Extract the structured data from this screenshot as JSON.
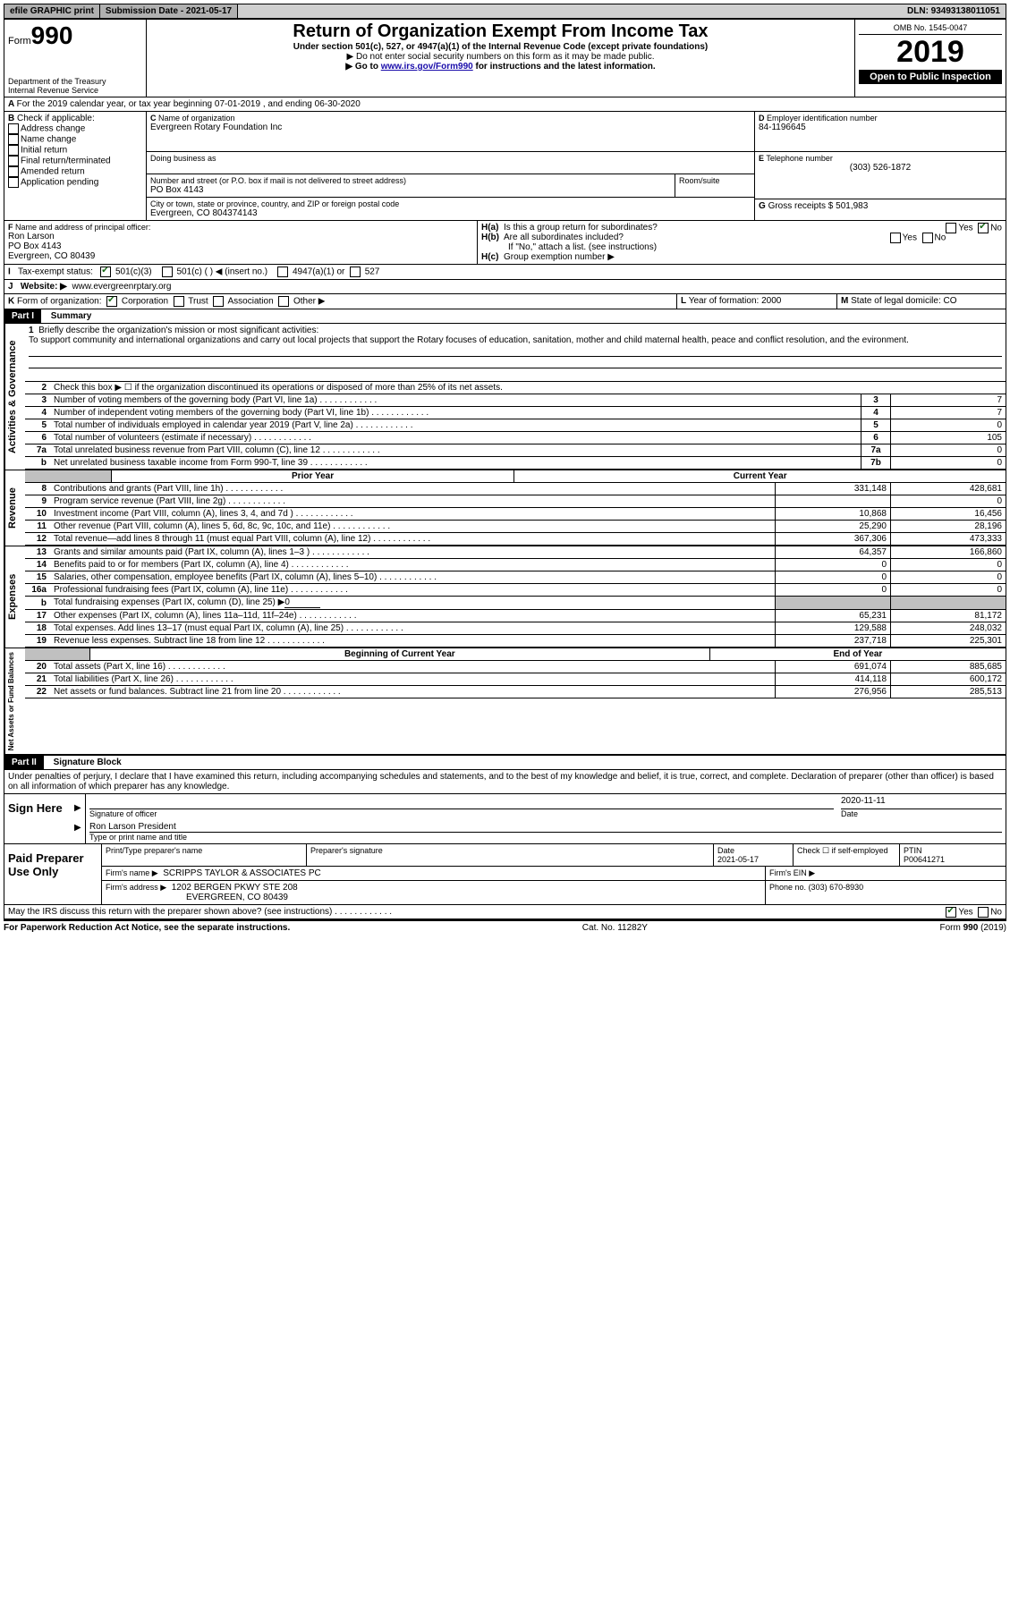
{
  "topbar": {
    "efile": "efile GRAPHIC print",
    "submission_label": "Submission Date - 2021-05-17",
    "dln_label": "DLN: 93493138011051"
  },
  "header": {
    "form_label": "Form",
    "form_number": "990",
    "dept1": "Department of the Treasury",
    "dept2": "Internal Revenue Service",
    "title": "Return of Organization Exempt From Income Tax",
    "subtitle": "Under section 501(c), 527, or 4947(a)(1) of the Internal Revenue Code (except private foundations)",
    "note1": "▶ Do not enter social security numbers on this form as it may be made public.",
    "note2_pre": "▶ Go to ",
    "note2_link": "www.irs.gov/Form990",
    "note2_post": " for instructions and the latest information.",
    "omb": "OMB No. 1545-0047",
    "year": "2019",
    "inspection": "Open to Public Inspection"
  },
  "periodA": "For the 2019 calendar year, or tax year beginning 07-01-2019    , and ending 06-30-2020",
  "boxB": {
    "label": "Check if applicable:",
    "opts": [
      "Address change",
      "Name change",
      "Initial return",
      "Final return/terminated",
      "Amended return",
      "Application pending"
    ]
  },
  "boxC": {
    "name_label": "Name of organization",
    "name": "Evergreen Rotary Foundation Inc",
    "dba_label": "Doing business as",
    "street_label": "Number and street (or P.O. box if mail is not delivered to street address)",
    "room_label": "Room/suite",
    "street": "PO Box 4143",
    "city_label": "City or town, state or province, country, and ZIP or foreign postal code",
    "city": "Evergreen, CO  804374143"
  },
  "boxD": {
    "label": "Employer identification number",
    "value": "84-1196645"
  },
  "boxE": {
    "label": "Telephone number",
    "value": "(303) 526-1872"
  },
  "boxG": {
    "label": "Gross receipts $",
    "value": "501,983"
  },
  "boxF": {
    "label": "Name and address of principal officer:",
    "name": "Ron Larson",
    "street": "PO Box 4143",
    "city": "Evergreen, CO  80439"
  },
  "boxH": {
    "a": "Is this a group return for subordinates?",
    "b": "Are all subordinates included?",
    "b_note": "If \"No,\" attach a list. (see instructions)",
    "c": "Group exemption number ▶",
    "yes": "Yes",
    "no": "No"
  },
  "boxI": {
    "label": "Tax-exempt status:",
    "o1": "501(c)(3)",
    "o2": "501(c) (   ) ◀ (insert no.)",
    "o3": "4947(a)(1) or",
    "o4": "527"
  },
  "boxJ": {
    "label": "Website: ▶",
    "value": "www.evergreenrptary.org"
  },
  "boxK": {
    "label": "Form of organization:",
    "o1": "Corporation",
    "o2": "Trust",
    "o3": "Association",
    "o4": "Other ▶"
  },
  "boxL": {
    "label": "Year of formation:",
    "value": "2000"
  },
  "boxM": {
    "label": "State of legal domicile:",
    "value": "CO"
  },
  "part1": {
    "title": "Part I",
    "subtitle": "Summary",
    "l1_label": "Briefly describe the organization's mission or most significant activities:",
    "l1_text": "To support community and international organizations and carry out local projects that support the Rotary focuses of education, sanitation, mother and child maternal health, peace and conflict resolution, and the evironment.",
    "l2": "Check this box ▶ ☐ if the organization discontinued its operations or disposed of more than 25% of its net assets.",
    "lines_top": [
      {
        "n": "3",
        "t": "Number of voting members of the governing body (Part VI, line 1a)",
        "box": "3",
        "v": "7"
      },
      {
        "n": "4",
        "t": "Number of independent voting members of the governing body (Part VI, line 1b)",
        "box": "4",
        "v": "7"
      },
      {
        "n": "5",
        "t": "Total number of individuals employed in calendar year 2019 (Part V, line 2a)",
        "box": "5",
        "v": "0"
      },
      {
        "n": "6",
        "t": "Total number of volunteers (estimate if necessary)",
        "box": "6",
        "v": "105"
      },
      {
        "n": "7a",
        "t": "Total unrelated business revenue from Part VIII, column (C), line 12",
        "box": "7a",
        "v": "0"
      },
      {
        "n": "b",
        "t": "Net unrelated business taxable income from Form 990-T, line 39",
        "box": "7b",
        "v": "0"
      }
    ],
    "col_prior": "Prior Year",
    "col_current": "Current Year",
    "revenue": [
      {
        "n": "8",
        "t": "Contributions and grants (Part VIII, line 1h)",
        "p": "331,148",
        "c": "428,681"
      },
      {
        "n": "9",
        "t": "Program service revenue (Part VIII, line 2g)",
        "p": "",
        "c": "0"
      },
      {
        "n": "10",
        "t": "Investment income (Part VIII, column (A), lines 3, 4, and 7d )",
        "p": "10,868",
        "c": "16,456"
      },
      {
        "n": "11",
        "t": "Other revenue (Part VIII, column (A), lines 5, 6d, 8c, 9c, 10c, and 11e)",
        "p": "25,290",
        "c": "28,196"
      },
      {
        "n": "12",
        "t": "Total revenue—add lines 8 through 11 (must equal Part VIII, column (A), line 12)",
        "p": "367,306",
        "c": "473,333"
      }
    ],
    "expenses": [
      {
        "n": "13",
        "t": "Grants and similar amounts paid (Part IX, column (A), lines 1–3 )",
        "p": "64,357",
        "c": "166,860"
      },
      {
        "n": "14",
        "t": "Benefits paid to or for members (Part IX, column (A), line 4)",
        "p": "0",
        "c": "0"
      },
      {
        "n": "15",
        "t": "Salaries, other compensation, employee benefits (Part IX, column (A), lines 5–10)",
        "p": "0",
        "c": "0"
      },
      {
        "n": "16a",
        "t": "Professional fundraising fees (Part IX, column (A), line 11e)",
        "p": "0",
        "c": "0"
      }
    ],
    "l16b": "Total fundraising expenses (Part IX, column (D), line 25) ▶",
    "l16b_val": "0",
    "expenses2": [
      {
        "n": "17",
        "t": "Other expenses (Part IX, column (A), lines 11a–11d, 11f–24e)",
        "p": "65,231",
        "c": "81,172"
      },
      {
        "n": "18",
        "t": "Total expenses. Add lines 13–17 (must equal Part IX, column (A), line 25)",
        "p": "129,588",
        "c": "248,032"
      },
      {
        "n": "19",
        "t": "Revenue less expenses. Subtract line 18 from line 12",
        "p": "237,718",
        "c": "225,301"
      }
    ],
    "col_begin": "Beginning of Current Year",
    "col_end": "End of Year",
    "netassets": [
      {
        "n": "20",
        "t": "Total assets (Part X, line 16)",
        "p": "691,074",
        "c": "885,685"
      },
      {
        "n": "21",
        "t": "Total liabilities (Part X, line 26)",
        "p": "414,118",
        "c": "600,172"
      },
      {
        "n": "22",
        "t": "Net assets or fund balances. Subtract line 21 from line 20",
        "p": "276,956",
        "c": "285,513"
      }
    ],
    "vlabels": {
      "gov": "Activities & Governance",
      "rev": "Revenue",
      "exp": "Expenses",
      "net": "Net Assets or Fund Balances"
    }
  },
  "part2": {
    "title": "Part II",
    "subtitle": "Signature Block",
    "penalties": "Under penalties of perjury, I declare that I have examined this return, including accompanying schedules and statements, and to the best of my knowledge and belief, it is true, correct, and complete. Declaration of preparer (other than officer) is based on all information of which preparer has any knowledge.",
    "sign_here": "Sign Here",
    "sig_officer": "Signature of officer",
    "date_label": "Date",
    "sig_date": "2020-11-11",
    "officer_name": "Ron Larson  President",
    "type_name": "Type or print name and title",
    "paid": "Paid Preparer Use Only",
    "prep_name_label": "Print/Type preparer's name",
    "prep_sig_label": "Preparer's signature",
    "prep_date_label": "Date",
    "prep_date": "2021-05-17",
    "check_self": "Check ☐ if self-employed",
    "ptin_label": "PTIN",
    "ptin": "P00641271",
    "firm_name_label": "Firm's name    ▶",
    "firm_name": "SCRIPPS TAYLOR & ASSOCIATES PC",
    "firm_ein_label": "Firm's EIN ▶",
    "firm_addr_label": "Firm's address ▶",
    "firm_addr1": "1202 BERGEN PKWY STE 208",
    "firm_addr2": "EVERGREEN, CO  80439",
    "phone_label": "Phone no.",
    "phone": "(303) 670-8930",
    "discuss": "May the IRS discuss this return with the preparer shown above? (see instructions)",
    "yes": "Yes",
    "no": "No"
  },
  "footer": {
    "left": "For Paperwork Reduction Act Notice, see the separate instructions.",
    "mid": "Cat. No. 11282Y",
    "right": "Form 990 (2019)"
  }
}
